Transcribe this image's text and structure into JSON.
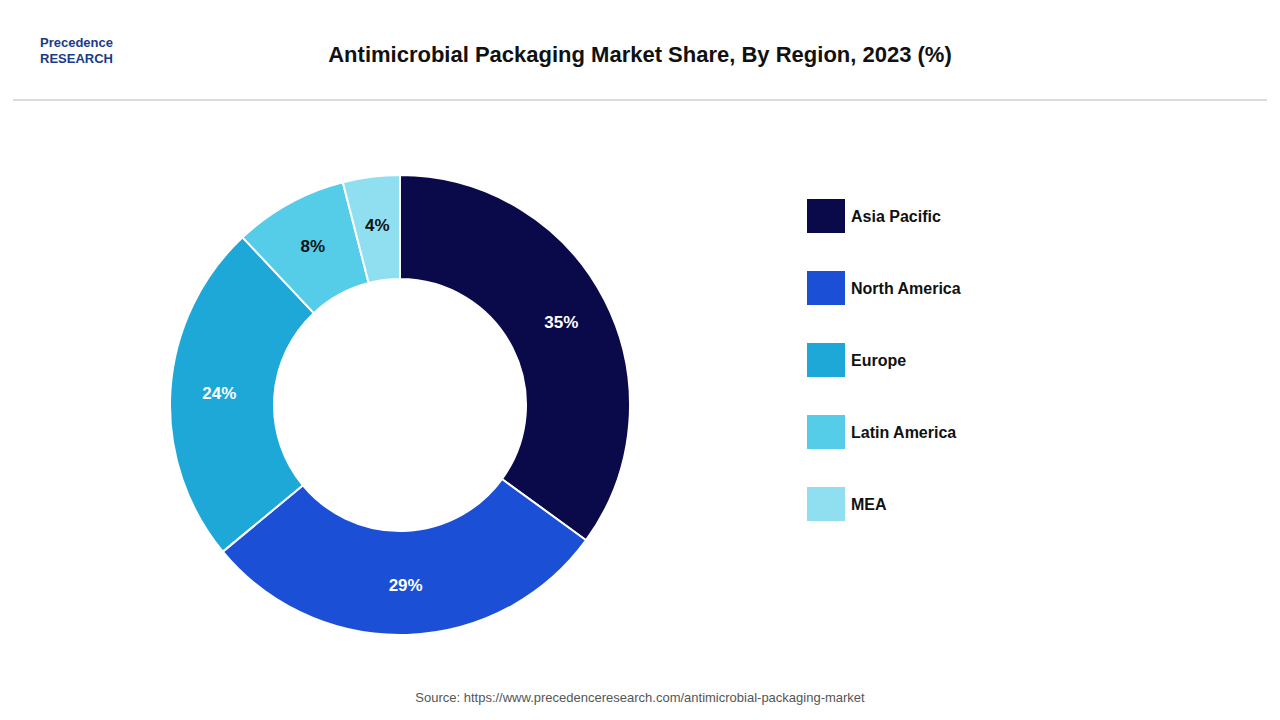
{
  "chart_data": {
    "type": "pie",
    "title": "Antimicrobial Packaging Market Share, By Region, 2023 (%)",
    "categories": [
      "Asia Pacific",
      "North America",
      "Europe",
      "Latin America",
      "MEA"
    ],
    "values": [
      35,
      29,
      24,
      8,
      4
    ],
    "value_labels": [
      "35%",
      "29%",
      "24%",
      "8%",
      "4%"
    ],
    "colors": [
      "#0a0a4a",
      "#1a4fd6",
      "#1da8d8",
      "#55cce8",
      "#90dff0"
    ],
    "data_labels": true,
    "legend": "right",
    "annotations": [
      "Precedence\nRESEARCH",
      "Source: https://www.precedenceresearch.com/antimicrobial-packaging-market"
    ]
  }
}
